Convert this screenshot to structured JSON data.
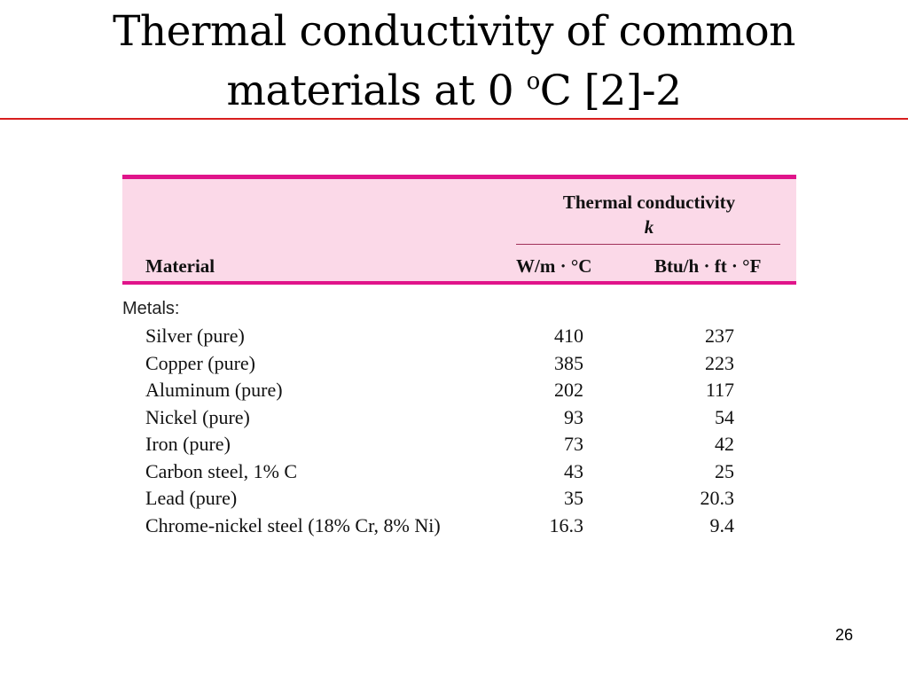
{
  "slide": {
    "title_line1": "Thermal  conductivity of common",
    "title_line2_prefix": "materials at 0 ",
    "title_line2_degree": "o",
    "title_line2_suffix": "C [2]-2",
    "page_number": "26",
    "accent_rule_color": "#d81e1e"
  },
  "table": {
    "header_fill": "#fbd9e8",
    "header_border_color": "#e0148a",
    "column_material": "Material",
    "group_header": "Thermal conductivity",
    "group_symbol": "k",
    "unit_si": "W/m · °C",
    "unit_imperial": "Btu/h · ft · °F",
    "section_label": "Metals:",
    "rows": [
      {
        "material": "Silver (pure)",
        "si": "410",
        "imperial": "237"
      },
      {
        "material": "Copper (pure)",
        "si": "385",
        "imperial": "223"
      },
      {
        "material": "Aluminum (pure)",
        "si": "202",
        "imperial": "117"
      },
      {
        "material": "Nickel (pure)",
        "si": "93",
        "imperial": "54"
      },
      {
        "material": "Iron (pure)",
        "si": "73",
        "imperial": "42"
      },
      {
        "material": "Carbon steel, 1% C",
        "si": "43",
        "imperial": "25"
      },
      {
        "material": "Lead (pure)",
        "si": "35",
        "imperial": "20.3"
      },
      {
        "material": "Chrome-nickel steel (18% Cr, 8% Ni)",
        "si": "16.3",
        "imperial": "9.4"
      }
    ]
  }
}
